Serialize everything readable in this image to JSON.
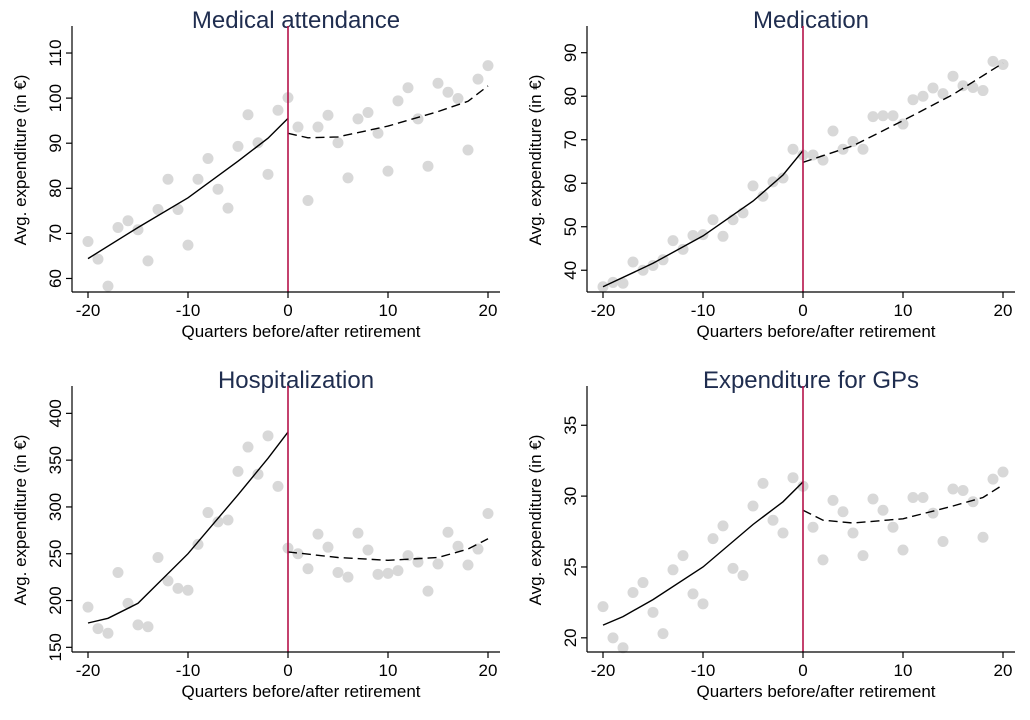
{
  "style": {
    "title_color": "#1f2d4f",
    "point_color": "#d8d8d8",
    "fit_color": "#000000",
    "cutoff_color": "#b5124a"
  },
  "chart_data": [
    {
      "type": "scatter",
      "title": "Medical attendance",
      "xlabel": "Quarters before/after retirement",
      "ylabel": "Avg. expenditure (in €)",
      "xlim": [
        -20,
        20
      ],
      "ylim": [
        57,
        112
      ],
      "xticks": [
        -20,
        -10,
        0,
        10,
        20
      ],
      "yticks": [
        60,
        70,
        80,
        90,
        100,
        110
      ],
      "grid": false,
      "cutoff_x": 0,
      "points": [
        [
          -20,
          68.2
        ],
        [
          -19,
          64.3
        ],
        [
          -18,
          58.3
        ],
        [
          -17,
          71.3
        ],
        [
          -16,
          72.8
        ],
        [
          -15,
          70.8
        ],
        [
          -14,
          63.9
        ],
        [
          -13,
          75.3
        ],
        [
          -12,
          82.0
        ],
        [
          -11,
          75.3
        ],
        [
          -10,
          67.4
        ],
        [
          -9,
          82.0
        ],
        [
          -8,
          86.6
        ],
        [
          -7,
          79.8
        ],
        [
          -6,
          75.6
        ],
        [
          -5,
          89.3
        ],
        [
          -4,
          96.3
        ],
        [
          -3,
          90.1
        ],
        [
          -2,
          83.1
        ],
        [
          -1,
          97.3
        ],
        [
          0,
          100.1
        ],
        [
          1,
          93.6
        ],
        [
          2,
          77.3
        ],
        [
          3,
          93.6
        ],
        [
          4,
          96.2
        ],
        [
          5,
          90.1
        ],
        [
          6,
          82.3
        ],
        [
          7,
          95.4
        ],
        [
          8,
          96.8
        ],
        [
          9,
          92.2
        ],
        [
          10,
          83.8
        ],
        [
          11,
          99.4
        ],
        [
          12,
          102.3
        ],
        [
          13,
          95.4
        ],
        [
          14,
          84.9
        ],
        [
          15,
          103.3
        ],
        [
          16,
          101.3
        ],
        [
          17,
          99.9
        ],
        [
          18,
          88.5
        ],
        [
          19,
          104.2
        ],
        [
          20,
          107.2
        ]
      ],
      "fit_before": [
        [
          -20,
          64.4
        ],
        [
          -15,
          71.3
        ],
        [
          -10,
          77.9
        ],
        [
          -5,
          86.0
        ],
        [
          -2,
          91.1
        ],
        [
          0,
          95.5
        ]
      ],
      "fit_after": [
        [
          0,
          92.2
        ],
        [
          2,
          91.2
        ],
        [
          5,
          91.4
        ],
        [
          10,
          93.8
        ],
        [
          15,
          97.0
        ],
        [
          18,
          99.3
        ],
        [
          20,
          102.7
        ]
      ]
    },
    {
      "type": "scatter",
      "title": "Medication",
      "xlabel": "Quarters before/after retirement",
      "ylabel": "Avg. expenditure (in €)",
      "xlim": [
        -20,
        20
      ],
      "ylim": [
        35,
        92
      ],
      "xticks": [
        -20,
        -10,
        0,
        10,
        20
      ],
      "yticks": [
        40,
        50,
        60,
        70,
        80,
        90
      ],
      "grid": false,
      "cutoff_x": 0,
      "points": [
        [
          -20,
          36.2
        ],
        [
          -19,
          37.2
        ],
        [
          -18,
          37.0
        ],
        [
          -17,
          41.9
        ],
        [
          -16,
          40.0
        ],
        [
          -15,
          41.1
        ],
        [
          -14,
          42.4
        ],
        [
          -13,
          46.8
        ],
        [
          -12,
          44.8
        ],
        [
          -11,
          48.0
        ],
        [
          -10,
          48.2
        ],
        [
          -9,
          51.6
        ],
        [
          -8,
          47.8
        ],
        [
          -7,
          51.6
        ],
        [
          -6,
          53.2
        ],
        [
          -5,
          59.4
        ],
        [
          -4,
          57.0
        ],
        [
          -3,
          60.3
        ],
        [
          -2,
          61.2
        ],
        [
          -1,
          67.8
        ],
        [
          0,
          66.5
        ],
        [
          1,
          66.5
        ],
        [
          2,
          65.3
        ],
        [
          3,
          72.0
        ],
        [
          4,
          67.8
        ],
        [
          5,
          69.6
        ],
        [
          6,
          67.8
        ],
        [
          7,
          75.3
        ],
        [
          8,
          75.5
        ],
        [
          9,
          75.5
        ],
        [
          10,
          73.6
        ],
        [
          11,
          79.2
        ],
        [
          12,
          80.0
        ],
        [
          13,
          81.9
        ],
        [
          14,
          80.6
        ],
        [
          15,
          84.6
        ],
        [
          16,
          82.4
        ],
        [
          17,
          82.0
        ],
        [
          18,
          81.3
        ],
        [
          19,
          88.0
        ],
        [
          20,
          87.3
        ]
      ],
      "fit_before": [
        [
          -20,
          36.2
        ],
        [
          -15,
          41.6
        ],
        [
          -10,
          47.9
        ],
        [
          -5,
          55.9
        ],
        [
          -2,
          61.9
        ],
        [
          0,
          67.5
        ]
      ],
      "fit_after": [
        [
          0,
          64.8
        ],
        [
          5,
          68.6
        ],
        [
          10,
          74.4
        ],
        [
          15,
          80.4
        ],
        [
          20,
          87.6
        ]
      ]
    },
    {
      "type": "scatter",
      "title": "Hospitalization",
      "xlabel": "Quarters before/after retirement",
      "ylabel": "Avg. expenditure (in €)",
      "xlim": [
        -20,
        20
      ],
      "ylim": [
        145,
        410
      ],
      "xticks": [
        -20,
        -10,
        0,
        10,
        20
      ],
      "yticks": [
        150,
        200,
        250,
        300,
        350,
        400
      ],
      "grid": false,
      "cutoff_x": 0,
      "points": [
        [
          -20,
          193
        ],
        [
          -19,
          170
        ],
        [
          -18,
          165
        ],
        [
          -17,
          230
        ],
        [
          -16,
          197
        ],
        [
          -15,
          174
        ],
        [
          -14,
          172
        ],
        [
          -13,
          246
        ],
        [
          -12,
          221
        ],
        [
          -11,
          213
        ],
        [
          -10,
          211
        ],
        [
          -9,
          260
        ],
        [
          -8,
          294
        ],
        [
          -7,
          284
        ],
        [
          -6,
          286
        ],
        [
          -5,
          338
        ],
        [
          -4,
          364
        ],
        [
          -3,
          335
        ],
        [
          -2,
          376
        ],
        [
          -1,
          322
        ],
        [
          0,
          256
        ],
        [
          1,
          250
        ],
        [
          2,
          234
        ],
        [
          3,
          271
        ],
        [
          4,
          257
        ],
        [
          5,
          230
        ],
        [
          6,
          225
        ],
        [
          7,
          272
        ],
        [
          8,
          254
        ],
        [
          9,
          228
        ],
        [
          10,
          229
        ],
        [
          11,
          232
        ],
        [
          12,
          248
        ],
        [
          13,
          241
        ],
        [
          14,
          210
        ],
        [
          15,
          239
        ],
        [
          16,
          273
        ],
        [
          17,
          258
        ],
        [
          18,
          238
        ],
        [
          19,
          255
        ],
        [
          20,
          293
        ]
      ],
      "fit_before": [
        [
          -20,
          176
        ],
        [
          -18,
          181
        ],
        [
          -15,
          197
        ],
        [
          -10,
          250
        ],
        [
          -5,
          313
        ],
        [
          -2,
          352
        ],
        [
          0,
          380
        ]
      ],
      "fit_after": [
        [
          0,
          252
        ],
        [
          5,
          246
        ],
        [
          10,
          243
        ],
        [
          15,
          246
        ],
        [
          18,
          255
        ],
        [
          20,
          266
        ]
      ]
    },
    {
      "type": "scatter",
      "title": "Expenditure for GPs",
      "xlabel": "Quarters before/after retirement",
      "ylabel": "Avg. expenditure (in €)",
      "xlim": [
        -20,
        20
      ],
      "ylim": [
        19,
        36.5
      ],
      "xticks": [
        -20,
        -10,
        0,
        10,
        20
      ],
      "yticks": [
        20,
        25,
        30,
        35
      ],
      "grid": false,
      "cutoff_x": 0,
      "points": [
        [
          -20,
          22.2
        ],
        [
          -19,
          20.0
        ],
        [
          -18,
          19.3
        ],
        [
          -17,
          23.2
        ],
        [
          -16,
          23.9
        ],
        [
          -15,
          21.8
        ],
        [
          -14,
          20.3
        ],
        [
          -13,
          24.8
        ],
        [
          -12,
          25.8
        ],
        [
          -11,
          23.1
        ],
        [
          -10,
          22.4
        ],
        [
          -9,
          27.0
        ],
        [
          -8,
          27.9
        ],
        [
          -7,
          24.9
        ],
        [
          -6,
          24.4
        ],
        [
          -5,
          29.3
        ],
        [
          -4,
          30.9
        ],
        [
          -3,
          28.3
        ],
        [
          -2,
          27.4
        ],
        [
          -1,
          31.3
        ],
        [
          0,
          30.7
        ],
        [
          1,
          27.8
        ],
        [
          2,
          25.5
        ],
        [
          3,
          29.7
        ],
        [
          4,
          28.9
        ],
        [
          5,
          27.4
        ],
        [
          6,
          25.8
        ],
        [
          7,
          29.8
        ],
        [
          8,
          29.0
        ],
        [
          9,
          27.8
        ],
        [
          10,
          26.2
        ],
        [
          11,
          29.9
        ],
        [
          12,
          29.9
        ],
        [
          13,
          28.8
        ],
        [
          14,
          26.8
        ],
        [
          15,
          30.5
        ],
        [
          16,
          30.4
        ],
        [
          17,
          29.6
        ],
        [
          18,
          27.1
        ],
        [
          19,
          31.2
        ],
        [
          20,
          31.7
        ]
      ],
      "fit_before": [
        [
          -20,
          20.9
        ],
        [
          -18,
          21.5
        ],
        [
          -15,
          22.7
        ],
        [
          -10,
          25.0
        ],
        [
          -5,
          28.0
        ],
        [
          -2,
          29.6
        ],
        [
          0,
          31.0
        ]
      ],
      "fit_after": [
        [
          0,
          29.0
        ],
        [
          2,
          28.3
        ],
        [
          5,
          28.1
        ],
        [
          10,
          28.4
        ],
        [
          15,
          29.3
        ],
        [
          18,
          29.9
        ],
        [
          20,
          30.8
        ]
      ]
    }
  ]
}
